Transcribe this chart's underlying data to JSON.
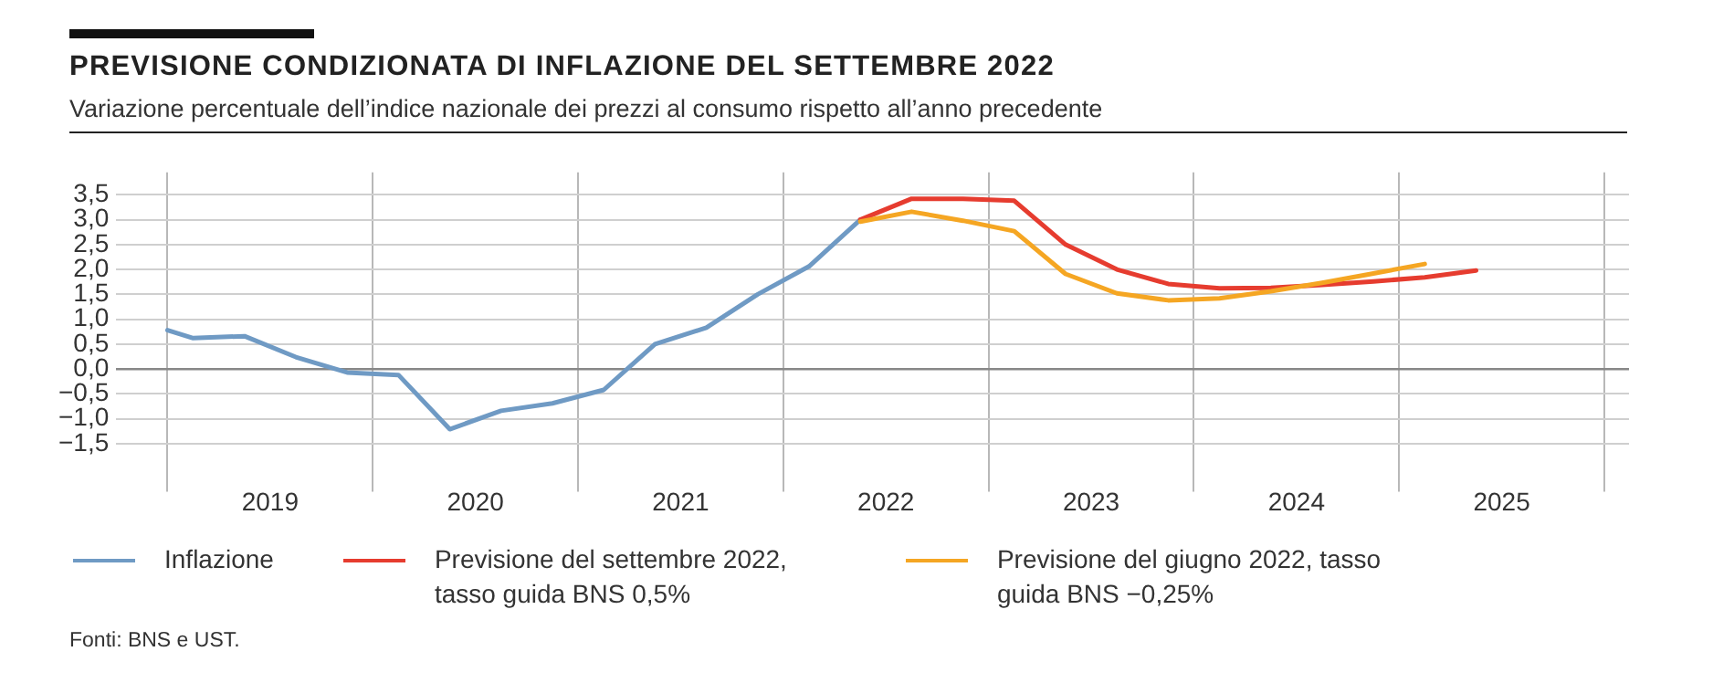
{
  "chart_data": {
    "type": "line",
    "title": "PREVISIONE CONDIZIONATA DI INFLAZIONE DEL SETTEMBRE 2022",
    "subtitle": "Variazione percentuale dell’indice nazionale dei prezzi al consumo rispetto all’anno precedente",
    "annotations": [
      "Fonti: BNS e UST."
    ],
    "series": [
      {
        "name": "Inflazione",
        "color": "#6f9ac4",
        "x": [
          2019,
          2019.125,
          2019.375,
          2019.625,
          2019.875,
          2020.125,
          2020.375,
          2020.625,
          2020.875,
          2021.125,
          2021.375,
          2021.625,
          2021.875,
          2022.125,
          2022.375
        ],
        "values": [
          0.78,
          0.62,
          0.66,
          0.24,
          -0.07,
          -0.12,
          -1.21,
          -0.84,
          -0.69,
          -0.42,
          0.5,
          0.83,
          1.5,
          2.06,
          3.0
        ]
      },
      {
        "name": "Previsione del settembre 2022, tasso guida BNS 0,5%",
        "color": "#e63c2f",
        "x": [
          2022.375,
          2022.625,
          2022.875,
          2023.125,
          2023.375,
          2023.625,
          2023.875,
          2024.125,
          2024.375,
          2024.625,
          2024.875,
          2025.125,
          2025.375
        ],
        "values": [
          3.0,
          3.42,
          3.42,
          3.38,
          2.5,
          2.0,
          1.71,
          1.62,
          1.63,
          1.69,
          1.76,
          1.84,
          1.98
        ]
      },
      {
        "name": "Previsione del giugno 2022, tasso guida BNS −0,25%",
        "color": "#f5a623",
        "x": [
          2022.375,
          2022.625,
          2022.875,
          2023.125,
          2023.375,
          2023.625,
          2023.875,
          2024.125,
          2024.375,
          2024.625,
          2024.875,
          2025.125
        ],
        "values": [
          2.96,
          3.16,
          2.98,
          2.77,
          1.91,
          1.52,
          1.38,
          1.42,
          1.56,
          1.73,
          1.92,
          2.11
        ]
      }
    ],
    "xlim": [
      2018.75,
      2026.12
    ],
    "xticks": [
      {
        "value": 2019,
        "label": null
      },
      {
        "value": 2019.5,
        "label": "2019"
      },
      {
        "value": 2020,
        "label": null
      },
      {
        "value": 2020.5,
        "label": "2020"
      },
      {
        "value": 2021,
        "label": null
      },
      {
        "value": 2021.5,
        "label": "2021"
      },
      {
        "value": 2022,
        "label": null
      },
      {
        "value": 2022.5,
        "label": "2022"
      },
      {
        "value": 2023,
        "label": null
      },
      {
        "value": 2023.5,
        "label": "2023"
      },
      {
        "value": 2024,
        "label": null
      },
      {
        "value": 2024.5,
        "label": "2024"
      },
      {
        "value": 2025,
        "label": null
      },
      {
        "value": 2025.5,
        "label": "2025"
      },
      {
        "value": 2026,
        "label": null
      }
    ],
    "ylim": [
      -1.95,
      3.95
    ],
    "yticks": [
      {
        "value": -1.5,
        "label": "−1,5"
      },
      {
        "value": -1,
        "label": "−1,0"
      },
      {
        "value": -0.5,
        "label": "−0,5"
      },
      {
        "value": 0,
        "label": "0,0"
      },
      {
        "value": 0.5,
        "label": "0,5"
      },
      {
        "value": 1,
        "label": "1,0"
      },
      {
        "value": 1.5,
        "label": "1,5"
      },
      {
        "value": 2,
        "label": "2,0"
      },
      {
        "value": 2.5,
        "label": "2,5"
      },
      {
        "value": 3,
        "label": "3,0"
      },
      {
        "value": 3.5,
        "label": "3,5"
      }
    ],
    "grid": true,
    "legend": "bottom",
    "marker": "none",
    "line_style": "solid"
  }
}
